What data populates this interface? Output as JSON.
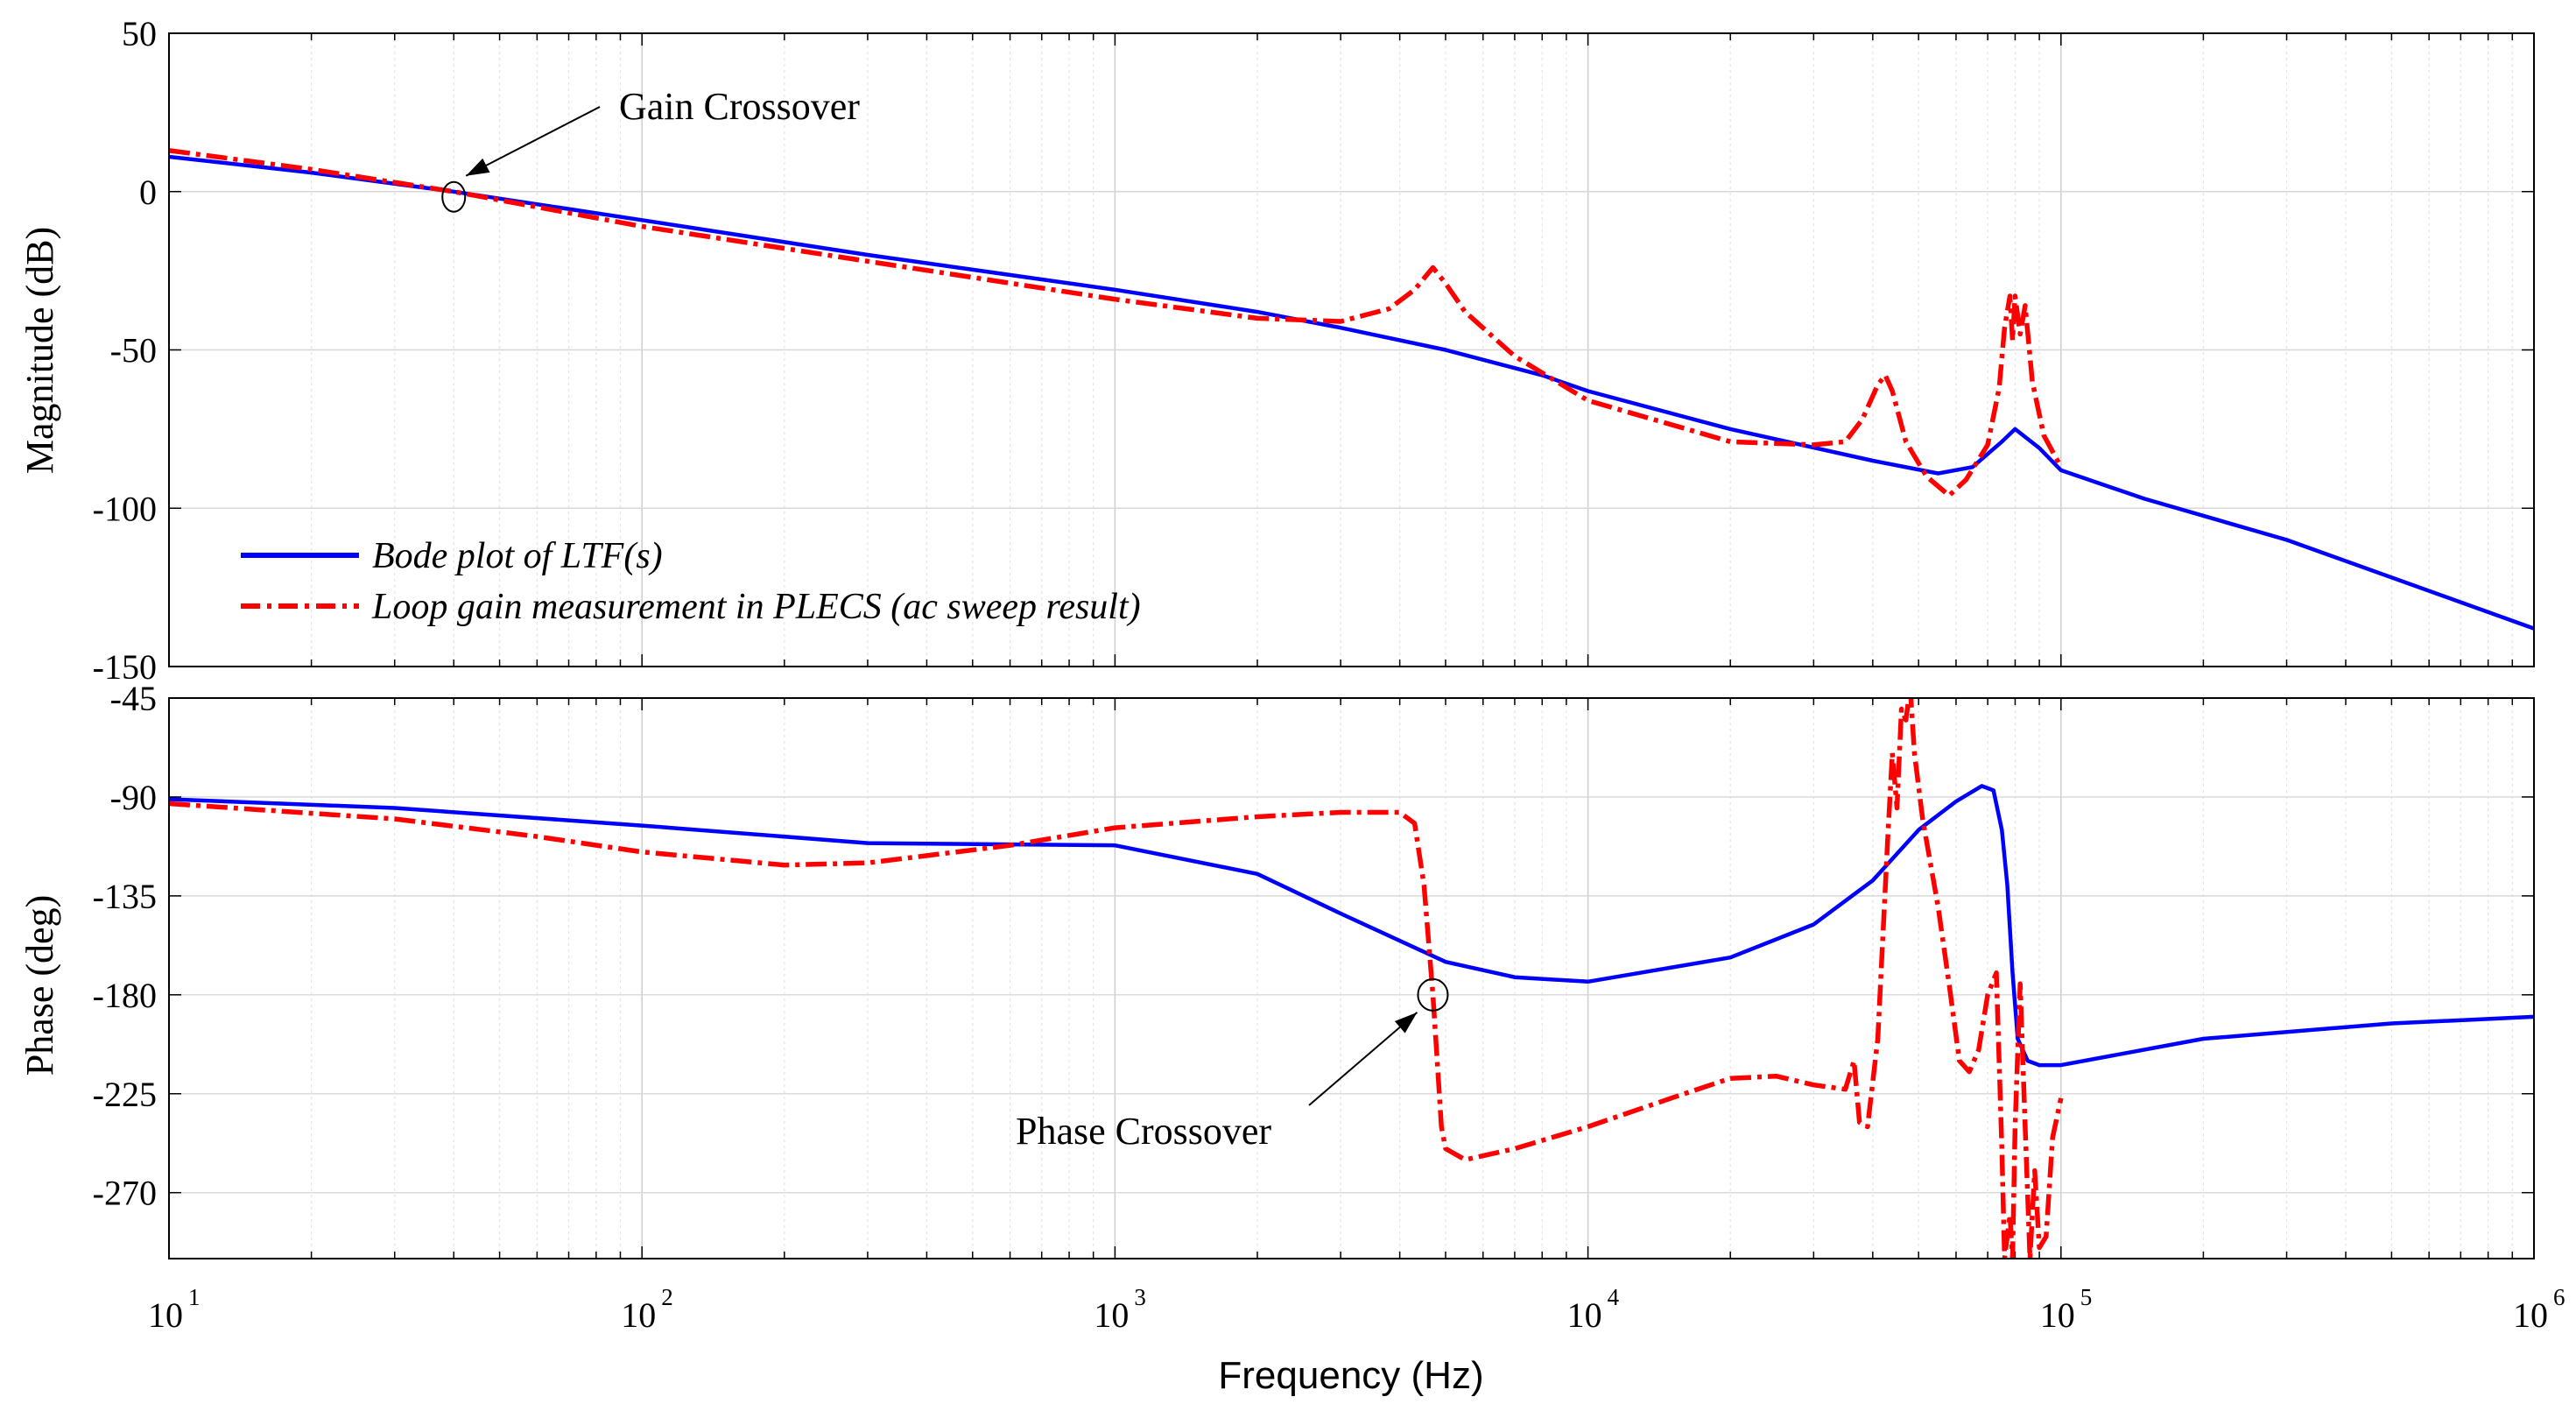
{
  "chart_data": {
    "type": "line",
    "title": "",
    "xlabel": "Frequency  (Hz)",
    "xscale": "log",
    "xlim": [
      10,
      1000000
    ],
    "x_ticks": [
      {
        "base": "10",
        "exp": "1"
      },
      {
        "base": "10",
        "exp": "2"
      },
      {
        "base": "10",
        "exp": "3"
      },
      {
        "base": "10",
        "exp": "4"
      },
      {
        "base": "10",
        "exp": "5"
      },
      {
        "base": "10",
        "exp": "6"
      }
    ],
    "grid": true,
    "legend_location": "lower-left of magnitude panel",
    "legend": [
      {
        "label": "Bode plot of LTF(s)",
        "color": "#0000ff",
        "style": "solid"
      },
      {
        "label": "Loop gain measurement in PLECS (ac sweep result)",
        "color": "#ff0000",
        "style": "dash-dot"
      }
    ],
    "magnitude": {
      "ylabel": "Magnitude (dB)",
      "ylim": [
        -150,
        50
      ],
      "yticks": [
        "50",
        "0",
        "-50",
        "-100",
        "-150"
      ],
      "series": [
        {
          "name": "Bode plot of LTF(s)",
          "points": [
            [
              10,
              11
            ],
            [
              20,
              6
            ],
            [
              40,
              0
            ],
            [
              100,
              -9
            ],
            [
              300,
              -20
            ],
            [
              1000,
              -31
            ],
            [
              2000,
              -38
            ],
            [
              3000,
              -43
            ],
            [
              5000,
              -50
            ],
            [
              8000,
              -58
            ],
            [
              10000,
              -63
            ],
            [
              20000,
              -75
            ],
            [
              40000,
              -85
            ],
            [
              55000,
              -89
            ],
            [
              65000,
              -87
            ],
            [
              75000,
              -79
            ],
            [
              80000,
              -75
            ],
            [
              90000,
              -81
            ],
            [
              100000,
              -88
            ],
            [
              150000,
              -97
            ],
            [
              300000,
              -110
            ],
            [
              1000000,
              -138
            ]
          ]
        },
        {
          "name": "Loop gain measurement in PLECS (ac sweep result)",
          "points": [
            [
              10,
              13
            ],
            [
              20,
              7
            ],
            [
              40,
              0
            ],
            [
              100,
              -11
            ],
            [
              300,
              -22
            ],
            [
              1000,
              -34
            ],
            [
              2000,
              -40
            ],
            [
              3000,
              -41
            ],
            [
              3800,
              -37
            ],
            [
              4300,
              -31
            ],
            [
              4700,
              -24
            ],
            [
              5000,
              -29
            ],
            [
              5500,
              -38
            ],
            [
              7000,
              -52
            ],
            [
              10000,
              -66
            ],
            [
              20000,
              -79
            ],
            [
              30000,
              -80
            ],
            [
              35000,
              -79
            ],
            [
              38000,
              -72
            ],
            [
              41000,
              -61
            ],
            [
              42500,
              -58
            ],
            [
              44000,
              -63
            ],
            [
              47000,
              -79
            ],
            [
              52000,
              -90
            ],
            [
              58000,
              -96
            ],
            [
              63000,
              -91
            ],
            [
              70000,
              -80
            ],
            [
              74000,
              -62
            ],
            [
              76000,
              -43
            ],
            [
              78000,
              -33
            ],
            [
              79000,
              -47
            ],
            [
              80000,
              -33
            ],
            [
              82000,
              -45
            ],
            [
              84000,
              -36
            ],
            [
              87000,
              -60
            ],
            [
              92000,
              -77
            ],
            [
              100000,
              -87
            ]
          ]
        }
      ],
      "annotation": {
        "label": "Gain Crossover",
        "x": 40,
        "y": 0
      }
    },
    "phase": {
      "ylabel": "Phase (deg)",
      "ylim": [
        -300,
        -45
      ],
      "yticks": [
        "-45",
        "-90",
        "-135",
        "-180",
        "-225",
        "-270"
      ],
      "series": [
        {
          "name": "Bode plot of LTF(s)",
          "points": [
            [
              10,
              -91
            ],
            [
              30,
              -95
            ],
            [
              100,
              -103
            ],
            [
              300,
              -111
            ],
            [
              1000,
              -112
            ],
            [
              2000,
              -125
            ],
            [
              3000,
              -143
            ],
            [
              5000,
              -165
            ],
            [
              7000,
              -172
            ],
            [
              10000,
              -174
            ],
            [
              20000,
              -163
            ],
            [
              30000,
              -148
            ],
            [
              40000,
              -128
            ],
            [
              50000,
              -105
            ],
            [
              60000,
              -92
            ],
            [
              68000,
              -85
            ],
            [
              72000,
              -87
            ],
            [
              75000,
              -105
            ],
            [
              77000,
              -130
            ],
            [
              79000,
              -170
            ],
            [
              81000,
              -200
            ],
            [
              85000,
              -210
            ],
            [
              90000,
              -212
            ],
            [
              100000,
              -212
            ],
            [
              200000,
              -200
            ],
            [
              500000,
              -193
            ],
            [
              1000000,
              -190
            ]
          ]
        },
        {
          "name": "Loop gain measurement in PLECS (ac sweep result)",
          "points": [
            [
              10,
              -93
            ],
            [
              30,
              -100
            ],
            [
              60,
              -108
            ],
            [
              100,
              -115
            ],
            [
              200,
              -121
            ],
            [
              300,
              -120
            ],
            [
              600,
              -112
            ],
            [
              1000,
              -104
            ],
            [
              2000,
              -99
            ],
            [
              3000,
              -97
            ],
            [
              4000,
              -97
            ],
            [
              4300,
              -102
            ],
            [
              4500,
              -130
            ],
            [
              4700,
              -180
            ],
            [
              4800,
              -210
            ],
            [
              4900,
              -240
            ],
            [
              5000,
              -250
            ],
            [
              5500,
              -255
            ],
            [
              7000,
              -250
            ],
            [
              10000,
              -240
            ],
            [
              15000,
              -227
            ],
            [
              20000,
              -218
            ],
            [
              25000,
              -217
            ],
            [
              30000,
              -221
            ],
            [
              35000,
              -223
            ],
            [
              36500,
              -210
            ],
            [
              37500,
              -238
            ],
            [
              39000,
              -240
            ],
            [
              41000,
              -200
            ],
            [
              43000,
              -110
            ],
            [
              44000,
              -70
            ],
            [
              45000,
              -95
            ],
            [
              46000,
              -50
            ],
            [
              47000,
              -55
            ],
            [
              48000,
              -40
            ],
            [
              49000,
              -70
            ],
            [
              51000,
              -100
            ],
            [
              55000,
              -140
            ],
            [
              58000,
              -175
            ],
            [
              61000,
              -210
            ],
            [
              64000,
              -215
            ],
            [
              67000,
              -205
            ],
            [
              70000,
              -180
            ],
            [
              73000,
              -170
            ],
            [
              75000,
              -250
            ],
            [
              76000,
              -300
            ],
            [
              78000,
              -280
            ],
            [
              79000,
              -300
            ],
            [
              80000,
              -240
            ],
            [
              82000,
              -175
            ],
            [
              84000,
              -240
            ],
            [
              86000,
              -300
            ],
            [
              88000,
              -260
            ],
            [
              90000,
              -295
            ],
            [
              93000,
              -290
            ],
            [
              96000,
              -245
            ],
            [
              100000,
              -227
            ]
          ]
        }
      ],
      "annotation": {
        "label": "Phase Crossover",
        "x": 4700,
        "y": -180
      }
    }
  }
}
